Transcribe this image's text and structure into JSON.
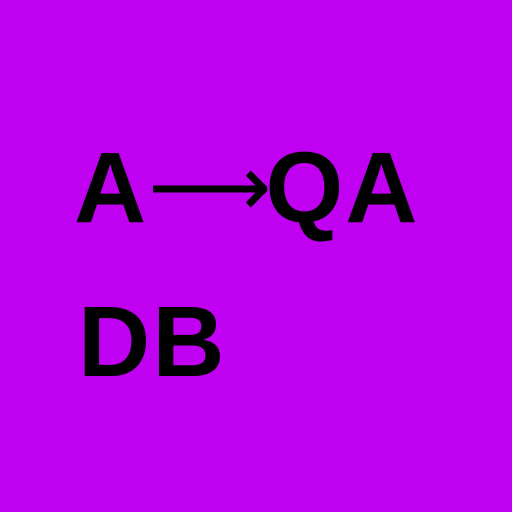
{
  "background_color": "#c000f0",
  "text_color": "#000000",
  "line1": {
    "left": "A",
    "arrow": "⟶",
    "right": "QA"
  },
  "line2": {
    "text": "DB"
  }
}
